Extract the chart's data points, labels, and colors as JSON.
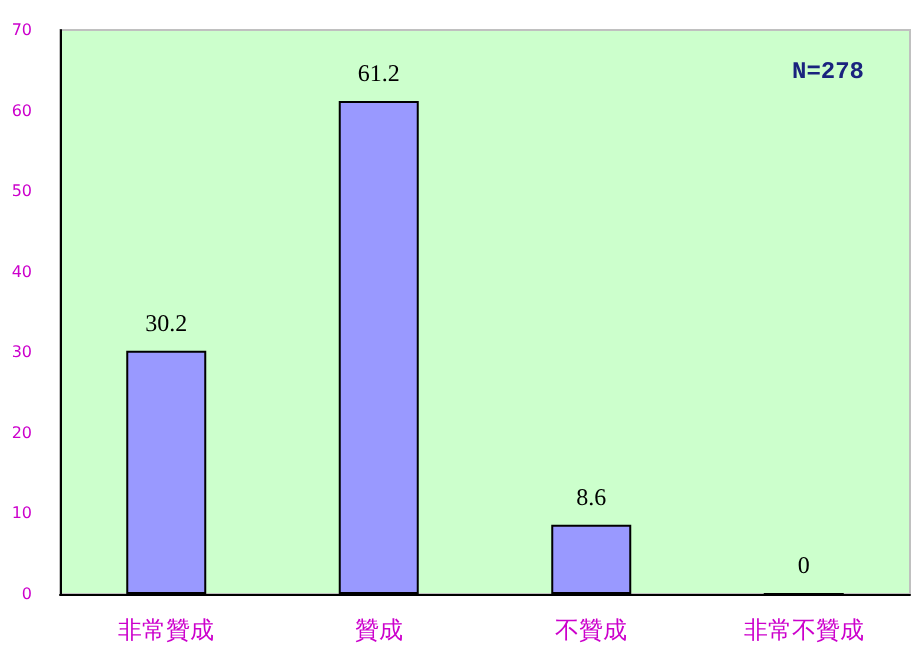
{
  "chart_data": {
    "type": "bar",
    "categories": [
      "非常贊成",
      "贊成",
      "不贊成",
      "非常不贊成"
    ],
    "values": [
      30.2,
      61.2,
      8.6,
      0
    ],
    "color": "#9999ff",
    "ylim": [
      0,
      70
    ],
    "yticks": [
      0,
      10,
      20,
      30,
      40,
      50,
      60,
      70
    ],
    "grid": false,
    "data_labels": true,
    "annotations": [
      "N=278"
    ]
  }
}
